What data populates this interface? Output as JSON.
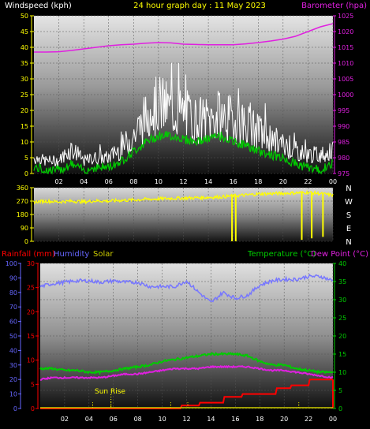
{
  "header": {
    "top_left": "Windspeed (kph)",
    "top_center": "24 hour graph day : 11 May 2023",
    "top_right": "Barometer (hpa)",
    "bottom_rainfall": "Rainfall (mm)",
    "bottom_humidity": "Humidity",
    "bottom_solar": "Solar",
    "bottom_temperature": "Temperature (°C)",
    "bottom_dewpoint": "Dew Point (°C)",
    "sunrise_label": "Sun Rise"
  },
  "colors": {
    "wind": "#ffffff",
    "wind_avg": "#00cc00",
    "barometer": "#e020e0",
    "direction": "#ffff00",
    "humidity": "#7777ff",
    "temperature": "#00cc00",
    "dewpoint": "#e020e0",
    "rain": "#ff0000",
    "solar": "#cccc00",
    "axis_left": "#ffff00",
    "axis_right": "#e020e0",
    "axis_green": "#00cc00",
    "axis_red": "#ff0000",
    "axis_blue": "#6666ff"
  },
  "chart_data": [
    {
      "type": "line",
      "name": "wind-and-barometer",
      "x_ticks": [
        "02",
        "04",
        "06",
        "08",
        "10",
        "12",
        "14",
        "16",
        "18",
        "20",
        "22",
        "00"
      ],
      "y_ticks_left": [
        "0",
        "5",
        "10",
        "15",
        "20",
        "25",
        "30",
        "35",
        "40",
        "45",
        "50"
      ],
      "y_ticks_right": [
        "975",
        "980",
        "985",
        "990",
        "995",
        "1000",
        "1005",
        "1010",
        "1015",
        "1020",
        "1025"
      ],
      "ylim_left": [
        0,
        50
      ],
      "ylim_right": [
        975,
        1025
      ],
      "xlim_hours": [
        0,
        24
      ],
      "series": [
        {
          "name": "Windspeed (kph)",
          "x": [
            0,
            1,
            2,
            3,
            4,
            5,
            6,
            7,
            8,
            9,
            10,
            11,
            12,
            13,
            14,
            15,
            16,
            17,
            18,
            19,
            20,
            21,
            22,
            23,
            24
          ],
          "values": [
            5,
            4,
            4,
            8,
            4,
            5,
            5,
            8,
            12,
            18,
            22,
            20,
            19,
            17,
            17,
            18,
            17,
            16,
            13,
            11,
            9,
            7,
            6,
            6,
            7
          ]
        },
        {
          "name": "Windspeed average",
          "x": [
            0,
            1,
            2,
            3,
            4,
            5,
            6,
            7,
            8,
            9,
            10,
            11,
            12,
            13,
            14,
            15,
            16,
            17,
            18,
            19,
            20,
            21,
            22,
            23,
            24
          ],
          "values": [
            2,
            1,
            1,
            3,
            1,
            2,
            2,
            4,
            7,
            10,
            12,
            12,
            11,
            10,
            11,
            12,
            10,
            9,
            7,
            6,
            5,
            3,
            2,
            1,
            3
          ]
        },
        {
          "name": "Barometer (hpa)",
          "x": [
            0,
            1,
            2,
            3,
            4,
            5,
            6,
            7,
            8,
            9,
            10,
            11,
            12,
            13,
            14,
            15,
            16,
            17,
            18,
            19,
            20,
            21,
            22,
            23,
            24
          ],
          "values": [
            1013.5,
            1013.5,
            1013.6,
            1014,
            1014.5,
            1015,
            1015.5,
            1015.8,
            1016,
            1016.3,
            1016.5,
            1016.4,
            1016,
            1015.9,
            1015.8,
            1015.8,
            1015.8,
            1016.1,
            1016.5,
            1017,
            1017.6,
            1018.5,
            1020,
            1021.5,
            1022.5
          ]
        }
      ]
    },
    {
      "type": "line",
      "name": "wind-direction",
      "x_ticks": [
        "02",
        "04",
        "06",
        "08",
        "10",
        "12",
        "14",
        "16",
        "18",
        "20",
        "22",
        "00"
      ],
      "y_ticks_left": [
        "0",
        "90",
        "180",
        "270",
        "360"
      ],
      "direction_labels": [
        "N",
        "W",
        "S",
        "E",
        "N"
      ],
      "ylim": [
        0,
        360
      ],
      "series": [
        {
          "name": "Wind direction",
          "x": [
            0,
            1,
            2,
            3,
            4,
            5,
            6,
            7,
            8,
            9,
            10,
            11,
            12,
            13,
            14,
            15,
            16,
            17,
            18,
            19,
            20,
            21,
            22,
            23,
            24
          ],
          "values": [
            265,
            270,
            265,
            270,
            265,
            272,
            270,
            275,
            278,
            282,
            285,
            288,
            290,
            292,
            295,
            298,
            305,
            310,
            318,
            320,
            322,
            325,
            328,
            320,
            310
          ],
          "drops": [
            {
              "x": 15.9,
              "to": 0
            },
            {
              "x": 16.2,
              "to": 0
            },
            {
              "x": 21.5,
              "to": 10
            },
            {
              "x": 22.3,
              "to": 20
            },
            {
              "x": 23.2,
              "to": 30
            }
          ]
        }
      ]
    },
    {
      "type": "line",
      "name": "temperature-humidity-rain",
      "x_ticks": [
        "02",
        "04",
        "06",
        "08",
        "10",
        "12",
        "14",
        "16",
        "18",
        "20",
        "22",
        "00"
      ],
      "y_ticks_humidity": [
        "0",
        "10",
        "20",
        "30",
        "40",
        "50",
        "60",
        "70",
        "80",
        "90",
        "100"
      ],
      "y_ticks_rain": [
        "0",
        "5",
        "10",
        "15",
        "20",
        "25",
        "30"
      ],
      "y_ticks_temp": [
        "0",
        "5",
        "10",
        "15",
        "20",
        "25",
        "30",
        "35",
        "40"
      ],
      "ylim_humidity": [
        0,
        100
      ],
      "ylim_rain": [
        0,
        30
      ],
      "ylim_temp": [
        0,
        40
      ],
      "series": [
        {
          "name": "Humidity",
          "x": [
            0,
            1,
            2,
            3,
            4,
            5,
            6,
            7,
            8,
            9,
            10,
            11,
            12,
            13,
            14,
            15,
            16,
            17,
            18,
            19,
            20,
            21,
            22,
            23,
            24
          ],
          "values": [
            84,
            86,
            87,
            88,
            88,
            87,
            88,
            87,
            87,
            84,
            84,
            84,
            88,
            80,
            73,
            80,
            76,
            78,
            85,
            88,
            89,
            89,
            91,
            91,
            88
          ]
        },
        {
          "name": "Temperature (°C)",
          "x": [
            0,
            1,
            2,
            3,
            4,
            5,
            6,
            7,
            8,
            9,
            10,
            11,
            12,
            13,
            14,
            15,
            16,
            17,
            18,
            19,
            20,
            21,
            22,
            23,
            24
          ],
          "values": [
            11,
            11,
            10.5,
            10.5,
            10,
            10,
            10.5,
            11,
            11.5,
            12,
            13,
            13.5,
            14,
            14.5,
            15,
            15,
            15,
            14.5,
            13,
            12,
            12,
            11,
            10.5,
            10,
            10
          ]
        },
        {
          "name": "Dew Point (°C)",
          "x": [
            0,
            1,
            2,
            3,
            4,
            5,
            6,
            7,
            8,
            9,
            10,
            11,
            12,
            13,
            14,
            15,
            16,
            17,
            18,
            19,
            20,
            21,
            22,
            23,
            24
          ],
          "values": [
            8,
            8.5,
            8.5,
            8.5,
            8.5,
            8.5,
            9,
            9.5,
            9.5,
            10,
            10.5,
            11,
            11,
            11,
            11.5,
            11.5,
            11.5,
            11.5,
            11,
            10.5,
            10.5,
            10,
            9.5,
            9,
            8.5
          ]
        },
        {
          "name": "Rainfall (mm)",
          "x": [
            0,
            11.5,
            11.6,
            13,
            13.1,
            15,
            15.1,
            16.5,
            16.6,
            19.3,
            19.4,
            20.5,
            20.6,
            22,
            22.1,
            24
          ],
          "values": [
            0,
            0,
            0.6,
            0.6,
            1.2,
            1.2,
            2.4,
            2.4,
            3.0,
            3.0,
            4.2,
            4.2,
            4.8,
            4.8,
            6.0,
            6.0
          ]
        }
      ],
      "solar_marks_hours": [
        4.3,
        5.8,
        10.7,
        12.1,
        21.2
      ],
      "sunrise_hour": 5.8
    }
  ]
}
